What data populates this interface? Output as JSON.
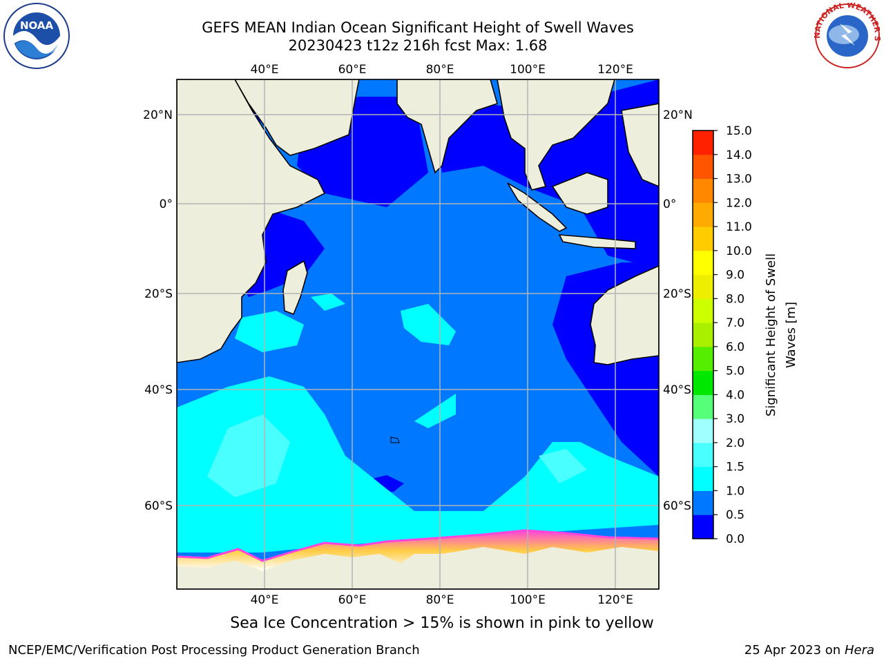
{
  "title_line1": "GEFS MEAN Indian Ocean Significant Height of Swell Waves",
  "title_line2": "20230423 t12z 216h fcst    Max: 1.68",
  "note": "Sea Ice Concentration > 15% is shown in pink to yellow",
  "footer_left": "NCEP/EMC/Verification Post Processing Product Generation Branch",
  "footer_right_prefix": "25 Apr 2023 on ",
  "footer_right_host": "Hera",
  "colorbar": {
    "label_line1": "Significant Height of Swell",
    "label_line2": "Waves [m]",
    "ticks": [
      "0.0",
      "0.5",
      "1.0",
      "1.5",
      "2.0",
      "3.0",
      "4.0",
      "5.0",
      "6.0",
      "7.0",
      "8.0",
      "9.0",
      "10.0",
      "11.0",
      "12.0",
      "13.0",
      "14.0",
      "15.0"
    ],
    "colors": [
      "#0000ff",
      "#0078ff",
      "#00ffff",
      "#49ffff",
      "#a0ffff",
      "#55ff78",
      "#00e800",
      "#55ee00",
      "#aaee00",
      "#ccff00",
      "#eeee00",
      "#ffff00",
      "#ffcc00",
      "#ffaa00",
      "#ff8800",
      "#ff5500",
      "#ff2200",
      "#ff0000"
    ]
  },
  "axes": {
    "lon_labels": [
      "40°E",
      "60°E",
      "80°E",
      "100°E",
      "120°E"
    ],
    "lat_labels": [
      "20°N",
      "0°",
      "20°S",
      "40°S",
      "60°S"
    ]
  },
  "colors": {
    "land": "#eeeedd",
    "ocean_low": "#0000ff",
    "ocean_mid": "#0078ff",
    "ocean_high": "#00ffff",
    "ocean_higher": "#49ffff",
    "ice_edge": "#ff44dd",
    "ice_fill": "#ffffff"
  },
  "logos": {
    "noaa_text": "NOAA",
    "nws_text": "NATIONAL WEATHER SERVICE"
  }
}
